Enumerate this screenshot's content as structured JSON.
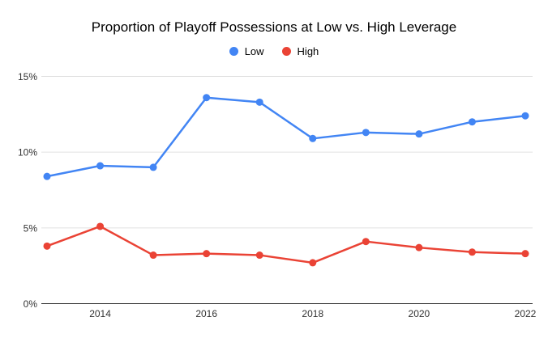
{
  "chart_data": {
    "type": "line",
    "title": "Proportion of Playoff Possessions at Low vs. High Leverage",
    "x": [
      2013,
      2014,
      2015,
      2016,
      2017,
      2018,
      2019,
      2020,
      2021,
      2022
    ],
    "series": [
      {
        "name": "Low",
        "color": "#4285F4",
        "values": [
          8.4,
          9.1,
          9.0,
          13.6,
          13.3,
          10.9,
          11.3,
          11.2,
          12.0,
          12.4
        ]
      },
      {
        "name": "High",
        "color": "#EA4335",
        "values": [
          3.8,
          5.1,
          3.2,
          3.3,
          3.2,
          2.7,
          4.1,
          3.7,
          3.4,
          3.3
        ]
      }
    ],
    "xlim": [
      2013,
      2022
    ],
    "ylim": [
      0,
      15
    ],
    "yticks": [
      {
        "label": "15%",
        "value": 15
      },
      {
        "label": "10%",
        "value": 10
      },
      {
        "label": "5%",
        "value": 5
      },
      {
        "label": "0%",
        "value": 0
      }
    ],
    "xticks": [
      {
        "label": "2014",
        "value": 2014
      },
      {
        "label": "2016",
        "value": 2016
      },
      {
        "label": "2018",
        "value": 2018
      },
      {
        "label": "2020",
        "value": 2020
      },
      {
        "label": "2022",
        "value": 2022
      }
    ],
    "grid": true,
    "legend_position": "top",
    "colors": {
      "gridline": "#e0e0e0",
      "axis_line": "#333333",
      "title_text": "#000000",
      "label_text": "#333333"
    }
  }
}
